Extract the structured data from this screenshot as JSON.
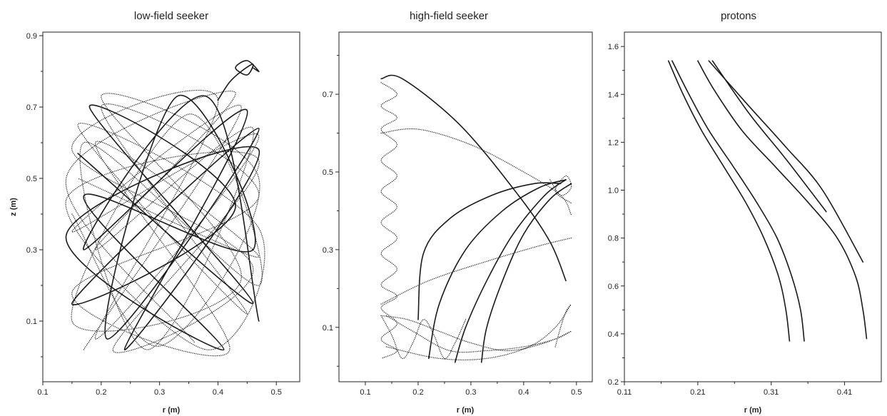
{
  "chart_data": [
    {
      "type": "line",
      "title": "low-field seeker",
      "xlabel": "r (m)",
      "ylabel": "z (m)",
      "xlim": [
        0.1,
        0.54
      ],
      "ylim": [
        -0.07,
        0.91
      ],
      "xticks": [
        "0.1",
        "0.2",
        "0.3",
        "0.4",
        "0.5"
      ],
      "yticks": [
        "0.1",
        "0.3",
        "0.5",
        "0.7",
        "0.9"
      ],
      "grid": false,
      "series": [
        {
          "style": "dotted",
          "x": [
            0.17,
            0.44,
            0.15,
            0.47,
            0.19,
            0.4,
            0.15,
            0.46,
            0.22,
            0.47,
            0.14,
            0.38,
            0.47,
            0.16,
            0.45,
            0.2,
            0.47,
            0.15,
            0.42,
            0.19,
            0.47,
            0.16
          ],
          "y": [
            0.02,
            0.7,
            0.35,
            0.62,
            0.05,
            0.72,
            0.58,
            0.25,
            0.02,
            0.55,
            0.44,
            0.02,
            0.36,
            0.65,
            0.12,
            0.7,
            0.45,
            0.18,
            0.02,
            0.6,
            0.28,
            0.5
          ]
        },
        {
          "style": "solid",
          "x": [
            0.16,
            0.46,
            0.18,
            0.43,
            0.15,
            0.47,
            0.21,
            0.33,
            0.46,
            0.17,
            0.41,
            0.14,
            0.47,
            0.24,
            0.45,
            0.17,
            0.38,
            0.47
          ],
          "y": [
            0.57,
            0.15,
            0.7,
            0.42,
            0.15,
            0.64,
            0.05,
            0.73,
            0.3,
            0.45,
            0.02,
            0.34,
            0.58,
            0.02,
            0.69,
            0.3,
            0.73,
            0.1
          ]
        },
        {
          "style": "dotted",
          "x": [
            0.15,
            0.3,
            0.47,
            0.2,
            0.44,
            0.15,
            0.35,
            0.47,
            0.17,
            0.28,
            0.46,
            0.19,
            0.43,
            0.14,
            0.36
          ],
          "y": [
            0.4,
            0.03,
            0.5,
            0.73,
            0.22,
            0.1,
            0.68,
            0.2,
            0.6,
            0.02,
            0.64,
            0.3,
            0.74,
            0.5,
            0.04
          ]
        },
        {
          "style": "solid",
          "x": [
            0.4,
            0.42,
            0.44,
            0.46,
            0.45,
            0.43,
            0.45,
            0.47,
            0.46
          ],
          "y": [
            0.72,
            0.77,
            0.8,
            0.82,
            0.79,
            0.81,
            0.83,
            0.8,
            0.81
          ]
        }
      ]
    },
    {
      "type": "line",
      "title": "high-field seeker",
      "xlabel": "r (m)",
      "ylabel": "",
      "xlim": [
        0.05,
        0.53
      ],
      "ylim": [
        -0.04,
        0.86
      ],
      "xticks": [
        "0.1",
        "0.2",
        "0.3",
        "0.4",
        "0.5"
      ],
      "yticks": [
        "0.1",
        "0.3",
        "0.5",
        "0.7"
      ],
      "grid": false,
      "series": [
        {
          "style": "dotted",
          "x": [
            0.13,
            0.16,
            0.13,
            0.16,
            0.13,
            0.16,
            0.13,
            0.16,
            0.13,
            0.16,
            0.13,
            0.16,
            0.13,
            0.16,
            0.13,
            0.16,
            0.13,
            0.16,
            0.13,
            0.16,
            0.13
          ],
          "y": [
            0.73,
            0.7,
            0.67,
            0.64,
            0.61,
            0.57,
            0.53,
            0.49,
            0.45,
            0.41,
            0.37,
            0.33,
            0.29,
            0.25,
            0.21,
            0.18,
            0.15,
            0.11,
            0.07,
            0.04,
            0.02
          ]
        },
        {
          "style": "solid",
          "x": [
            0.13,
            0.17,
            0.28,
            0.39,
            0.45,
            0.48
          ],
          "y": [
            0.74,
            0.74,
            0.62,
            0.44,
            0.32,
            0.22
          ]
        },
        {
          "style": "dotted",
          "x": [
            0.13,
            0.2,
            0.3,
            0.4,
            0.47,
            0.49
          ],
          "y": [
            0.6,
            0.61,
            0.57,
            0.5,
            0.44,
            0.39
          ]
        },
        {
          "style": "solid",
          "x": [
            0.2,
            0.21,
            0.26,
            0.34,
            0.42,
            0.47
          ],
          "y": [
            0.12,
            0.29,
            0.38,
            0.44,
            0.47,
            0.47
          ]
        },
        {
          "style": "solid",
          "x": [
            0.22,
            0.24,
            0.29,
            0.36,
            0.43,
            0.48
          ],
          "y": [
            0.02,
            0.16,
            0.3,
            0.4,
            0.46,
            0.48
          ]
        },
        {
          "style": "solid",
          "x": [
            0.27,
            0.29,
            0.33,
            0.38,
            0.44,
            0.48
          ],
          "y": [
            0.01,
            0.1,
            0.22,
            0.34,
            0.44,
            0.48
          ]
        },
        {
          "style": "solid",
          "x": [
            0.32,
            0.33,
            0.36,
            0.4,
            0.45,
            0.49
          ],
          "y": [
            0.01,
            0.1,
            0.22,
            0.34,
            0.43,
            0.47
          ]
        },
        {
          "style": "dotted",
          "x": [
            0.13,
            0.22,
            0.33,
            0.43,
            0.49
          ],
          "y": [
            0.16,
            0.22,
            0.27,
            0.31,
            0.33
          ]
        },
        {
          "style": "dotted",
          "x": [
            0.13,
            0.18,
            0.24,
            0.3,
            0.37,
            0.44,
            0.49
          ],
          "y": [
            0.13,
            0.12,
            0.09,
            0.06,
            0.04,
            0.06,
            0.09
          ]
        },
        {
          "style": "dotted",
          "x": [
            0.14,
            0.19,
            0.26,
            0.33,
            0.4,
            0.46,
            0.49
          ],
          "y": [
            0.13,
            0.09,
            0.04,
            0.04,
            0.05,
            0.07,
            0.09
          ]
        },
        {
          "style": "dotted",
          "x": [
            0.14,
            0.24,
            0.33,
            0.41,
            0.46,
            0.49
          ],
          "y": [
            0.05,
            0.02,
            0.02,
            0.05,
            0.1,
            0.16
          ]
        },
        {
          "style": "dotted",
          "x": [
            0.13,
            0.15,
            0.17,
            0.19,
            0.21,
            0.23,
            0.25,
            0.27,
            0.29
          ],
          "y": [
            0.13,
            0.08,
            0.02,
            0.06,
            0.12,
            0.08,
            0.02,
            0.06,
            0.12
          ]
        },
        {
          "style": "dotted",
          "x": [
            0.46,
            0.47,
            0.48,
            0.49
          ],
          "y": [
            0.05,
            0.1,
            0.14,
            0.16
          ]
        },
        {
          "style": "dotted",
          "x": [
            0.45,
            0.47,
            0.49,
            0.48,
            0.46,
            0.49
          ],
          "y": [
            0.48,
            0.44,
            0.46,
            0.49,
            0.45,
            0.42
          ]
        }
      ]
    },
    {
      "type": "line",
      "title": "protons",
      "xlabel": "r (m)",
      "ylabel": "",
      "xlim": [
        0.11,
        0.46
      ],
      "ylim": [
        0.2,
        1.66
      ],
      "xticks": [
        "0.11",
        "0.21",
        "0.31",
        "0.41"
      ],
      "yticks": [
        "0.2",
        "0.4",
        "0.6",
        "0.8",
        "1.0",
        "1.2",
        "1.4",
        "1.6"
      ],
      "grid": false,
      "series": [
        {
          "style": "solid",
          "x": [
            0.17,
            0.19,
            0.215,
            0.245,
            0.275,
            0.3,
            0.32,
            0.33,
            0.335
          ],
          "y": [
            1.54,
            1.4,
            1.25,
            1.1,
            0.95,
            0.8,
            0.64,
            0.5,
            0.37
          ]
        },
        {
          "style": "solid",
          "x": [
            0.175,
            0.198,
            0.225,
            0.258,
            0.29,
            0.318,
            0.338,
            0.35,
            0.355
          ],
          "y": [
            1.54,
            1.4,
            1.25,
            1.1,
            0.95,
            0.8,
            0.64,
            0.5,
            0.37
          ]
        },
        {
          "style": "solid",
          "x": [
            0.21,
            0.232,
            0.27,
            0.315,
            0.36,
            0.4,
            0.425,
            0.435,
            0.44
          ],
          "y": [
            1.54,
            1.42,
            1.25,
            1.1,
            0.95,
            0.8,
            0.64,
            0.5,
            0.38
          ]
        },
        {
          "style": "solid",
          "x": [
            0.225,
            0.28,
            0.33,
            0.38,
            0.435
          ],
          "y": [
            1.54,
            1.35,
            1.18,
            1.0,
            0.7
          ]
        },
        {
          "style": "solid",
          "x": [
            0.23,
            0.28,
            0.33,
            0.385
          ],
          "y": [
            1.54,
            1.32,
            1.13,
            0.91
          ]
        }
      ]
    }
  ]
}
